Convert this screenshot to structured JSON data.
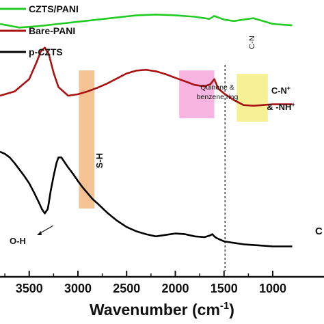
{
  "chart_data": {
    "type": "line",
    "xlabel": "Wavenumber (cm",
    "xlabel_sup": "-1",
    "xlabel_end": ")",
    "xlim": [
      3800,
      800
    ],
    "xticks": [
      3500,
      3000,
      2500,
      2000,
      1500,
      1000
    ],
    "xtick_labels": [
      "3500",
      "3000",
      "2500",
      "2000",
      "1500",
      "1000"
    ],
    "legend": [
      {
        "name": "CZTS/PANI",
        "color": "#22cc22"
      },
      {
        "name": "Bare-PANI",
        "color": "#aa1111"
      },
      {
        "name": "p-CZTS",
        "color": "#000000"
      }
    ],
    "series": [
      {
        "name": "CZTS/PANI",
        "color": "#22cc22",
        "x": [
          3800,
          3600,
          3400,
          3200,
          3000,
          2800,
          2600,
          2400,
          2200,
          2000,
          1800,
          1650,
          1600,
          1500,
          1400,
          1300,
          1200,
          1100,
          1000,
          900,
          800
        ],
        "y": [
          20,
          19.5,
          19.7,
          20.0,
          20.3,
          20.6,
          20.9,
          21.2,
          21.3,
          21.2,
          21.0,
          20.7,
          21.1,
          20.6,
          20.4,
          20.6,
          20.8,
          20.4,
          20.0,
          19.9,
          19.8
        ]
      },
      {
        "name": "Bare-PANI",
        "color": "#aa1111",
        "x": [
          3800,
          3650,
          3500,
          3420,
          3380,
          3340,
          3300,
          3250,
          3200,
          3100,
          3000,
          2900,
          2800,
          2700,
          2600,
          2500,
          2400,
          2300,
          2200,
          2100,
          2000,
          1900,
          1800,
          1700,
          1640,
          1600,
          1560,
          1500,
          1400,
          1300,
          1200,
          1100,
          1000,
          900,
          800
        ],
        "y": [
          10.0,
          10.6,
          12.3,
          14.8,
          16.2,
          16.7,
          15.8,
          13.2,
          11.2,
          10.0,
          10.2,
          10.6,
          11.1,
          11.7,
          12.4,
          13.1,
          13.5,
          13.6,
          13.4,
          13.0,
          12.5,
          12.0,
          11.5,
          11.3,
          11.6,
          12.3,
          11.0,
          10.3,
          9.4,
          8.7,
          8.6,
          8.7,
          8.8,
          8.8,
          8.8
        ]
      },
      {
        "name": "p-CZTS",
        "color": "#000000",
        "x": [
          3800,
          3750,
          3700,
          3650,
          3600,
          3550,
          3500,
          3450,
          3400,
          3370,
          3340,
          3310,
          3300,
          3280,
          3250,
          3220,
          3200,
          3170,
          3150,
          3100,
          3050,
          3000,
          2950,
          2900,
          2850,
          2800,
          2700,
          2600,
          2500,
          2400,
          2300,
          2200,
          2100,
          2000,
          1900,
          1800,
          1700,
          1650,
          1620,
          1600,
          1580,
          1550,
          1500,
          1400,
          1300,
          1200,
          1100,
          1000,
          900,
          800
        ],
        "y": [
          2.2,
          1.9,
          1.4,
          0.6,
          -0.3,
          -1.2,
          -2.2,
          -3.5,
          -4.9,
          -5.8,
          -6.4,
          -5.8,
          -5.0,
          -3.3,
          -1.2,
          0.6,
          1.4,
          1.4,
          1.0,
          0.0,
          -0.9,
          -1.9,
          -2.8,
          -3.6,
          -4.4,
          -5.0,
          -6.3,
          -7.4,
          -8.3,
          -8.9,
          -9.3,
          -9.6,
          -9.4,
          -9.2,
          -9.3,
          -9.6,
          -9.7,
          -9.5,
          -9.3,
          -9.6,
          -9.8,
          -10.0,
          -10.3,
          -10.5,
          -10.7,
          -10.8,
          -10.9,
          -11.0,
          -11.0,
          -11.0
        ]
      }
    ],
    "annotations": {
      "sh_band": {
        "label": "S-H",
        "x0": 2990,
        "x1": 2830,
        "color": "#f2b780"
      },
      "quinone_band": {
        "label1": "Quinone &",
        "label2": "benzene ring",
        "x0": 1960,
        "x1": 1600,
        "color": "#f7a8dc"
      },
      "cn_band": {
        "label1": "C-N",
        "label1_sup": "+",
        "label2": "& -NH",
        "label2_sup": "+",
        "x0": 1370,
        "x1": 1050,
        "color": "#f4ee85"
      },
      "cn_line": {
        "label": "C-N",
        "x": 1490
      },
      "oh": {
        "label": "O-H"
      },
      "edge_label": {
        "label": "C"
      }
    }
  }
}
